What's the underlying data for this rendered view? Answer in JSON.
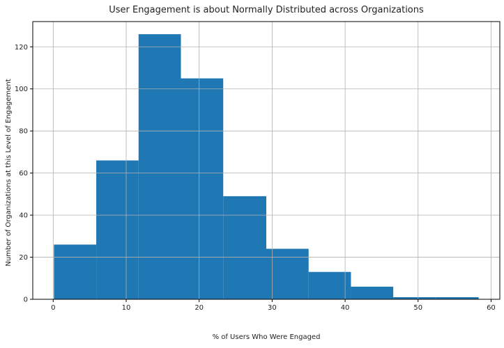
{
  "chart_data": {
    "type": "bar",
    "title": "User Engagement is about Normally Distributed across Organizations",
    "xlabel": "% of Users Who Were Engaged",
    "ylabel": "Number of Organizations at this Level of Engagement",
    "bins": [
      {
        "x0": 0.1,
        "x1": 5.9,
        "count": 26
      },
      {
        "x0": 5.9,
        "x1": 11.7,
        "count": 66
      },
      {
        "x0": 11.7,
        "x1": 17.5,
        "count": 126
      },
      {
        "x0": 17.5,
        "x1": 23.3,
        "count": 105
      },
      {
        "x0": 23.3,
        "x1": 29.2,
        "count": 49
      },
      {
        "x0": 29.2,
        "x1": 35.0,
        "count": 24
      },
      {
        "x0": 35.0,
        "x1": 40.8,
        "count": 13
      },
      {
        "x0": 40.8,
        "x1": 46.6,
        "count": 6
      },
      {
        "x0": 46.6,
        "x1": 52.4,
        "count": 1
      },
      {
        "x0": 52.4,
        "x1": 58.3,
        "count": 1
      }
    ],
    "xlim": [
      -2.8,
      61.2
    ],
    "ylim": [
      0,
      132
    ],
    "xticks": [
      "0",
      "10",
      "20",
      "30",
      "40",
      "50",
      "60"
    ],
    "yticks": [
      "0",
      "20",
      "40",
      "60",
      "80",
      "100",
      "120"
    ],
    "grid": true,
    "bar_color": "#1f77b4",
    "grid_color": "#b0b0b0"
  }
}
